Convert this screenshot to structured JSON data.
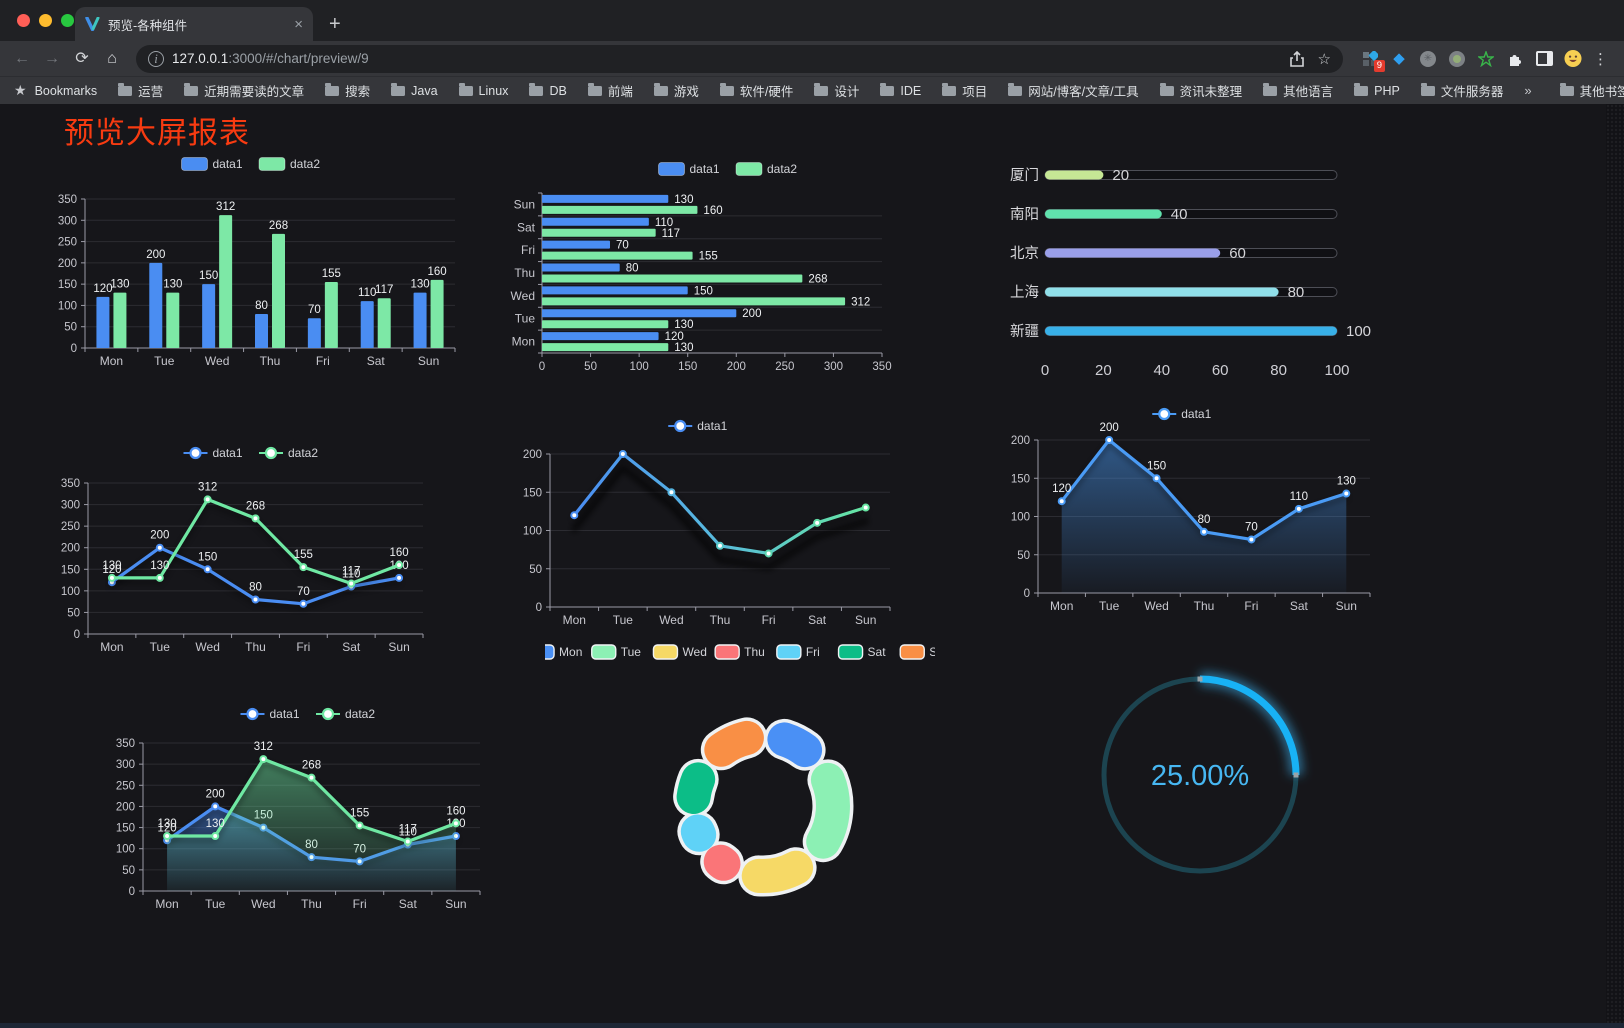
{
  "browser": {
    "tab": {
      "title": "预览-各种组件",
      "close": "×"
    },
    "new_tab": "+",
    "nav": {
      "back": "←",
      "forward": "→",
      "reload": "⟳",
      "home": "⌂"
    },
    "url": {
      "host": "127.0.0.1",
      "rest": ":3000/#/chart/preview/9"
    },
    "extension_badge": "9",
    "menu": "⋮",
    "bookmarks_bar": {
      "star": "★",
      "label": "Bookmarks",
      "folders": [
        "运营",
        "近期需要读的文章",
        "搜索",
        "Java",
        "Linux",
        "DB",
        "前端",
        "游戏",
        "软件/硬件",
        "设计",
        "IDE",
        "项目",
        "网站/博客/文章/工具",
        "资讯未整理",
        "其他语言",
        "PHP",
        "文件服务器"
      ],
      "overflow": "»",
      "other": "其他书签"
    }
  },
  "page": {
    "title": "预览大屏报表",
    "title_color": "#f83b11"
  },
  "chart_data": [
    {
      "id": "bar-vertical",
      "type": "bar",
      "categories": [
        "Mon",
        "Tue",
        "Wed",
        "Thu",
        "Fri",
        "Sat",
        "Sun"
      ],
      "series": [
        {
          "name": "data1",
          "color": "#4a8df2",
          "values": [
            120,
            200,
            150,
            80,
            70,
            110,
            130
          ]
        },
        {
          "name": "data2",
          "color": "#7de8a6",
          "values": [
            130,
            130,
            312,
            268,
            155,
            117,
            160
          ]
        }
      ],
      "ylim": [
        0,
        350
      ],
      "ystep": 50,
      "grid": true,
      "legend_position": "top",
      "value_labels": true
    },
    {
      "id": "bar-horizontal",
      "type": "bar",
      "orientation": "horizontal",
      "categories": [
        "Mon",
        "Tue",
        "Wed",
        "Thu",
        "Fri",
        "Sat",
        "Sun"
      ],
      "series": [
        {
          "name": "data1",
          "color": "#4a8df2",
          "values": [
            120,
            200,
            150,
            80,
            70,
            110,
            130
          ]
        },
        {
          "name": "data2",
          "color": "#7de8a6",
          "values": [
            130,
            130,
            312,
            268,
            155,
            117,
            160
          ]
        }
      ],
      "xlim": [
        0,
        350
      ],
      "xstep": 50,
      "grid": true,
      "legend_position": "top",
      "value_labels": true
    },
    {
      "id": "progress-bars",
      "type": "bar",
      "subtype": "progress",
      "xlim": [
        0,
        100
      ],
      "xticks": [
        0,
        20,
        40,
        60,
        80,
        100
      ],
      "items": [
        {
          "label": "厦门",
          "value": 20,
          "color": "#c6e795"
        },
        {
          "label": "南阳",
          "value": 40,
          "color": "#60e2ad"
        },
        {
          "label": "北京",
          "value": 60,
          "color": "#9a9fe9"
        },
        {
          "label": "上海",
          "value": 80,
          "color": "#90dfe9"
        },
        {
          "label": "新疆",
          "value": 100,
          "color": "#38b0e8"
        }
      ]
    },
    {
      "id": "line-two",
      "type": "line",
      "categories": [
        "Mon",
        "Tue",
        "Wed",
        "Thu",
        "Fri",
        "Sat",
        "Sun"
      ],
      "series": [
        {
          "name": "data1",
          "color": "#4a8df2",
          "values": [
            120,
            200,
            150,
            80,
            70,
            110,
            130
          ]
        },
        {
          "name": "data2",
          "color": "#6fe8a3",
          "values": [
            130,
            130,
            312,
            268,
            155,
            117,
            160
          ]
        }
      ],
      "ylim": [
        0,
        350
      ],
      "ystep": 50,
      "grid": true,
      "legend_position": "top",
      "value_labels": true
    },
    {
      "id": "line-gradient",
      "type": "line",
      "categories": [
        "Mon",
        "Tue",
        "Wed",
        "Thu",
        "Fri",
        "Sat",
        "Sun"
      ],
      "series": [
        {
          "name": "data1",
          "color": "#4a8df2",
          "gradient": [
            "#4a8df2",
            "#66e6a2"
          ],
          "values": [
            120,
            200,
            150,
            80,
            70,
            110,
            130
          ]
        }
      ],
      "ylim": [
        0,
        200
      ],
      "ystep": 50,
      "grid": true,
      "legend_position": "top",
      "value_labels": false,
      "shadow": true
    },
    {
      "id": "area-single",
      "type": "area",
      "categories": [
        "Mon",
        "Tue",
        "Wed",
        "Thu",
        "Fri",
        "Sat",
        "Sun"
      ],
      "series": [
        {
          "name": "data1",
          "color": "#4a9bf5",
          "values": [
            120,
            200,
            150,
            80,
            70,
            110,
            130
          ]
        }
      ],
      "ylim": [
        0,
        200
      ],
      "ystep": 50,
      "grid": true,
      "legend_position": "top",
      "value_labels": true
    },
    {
      "id": "line-area-two",
      "type": "area",
      "categories": [
        "Mon",
        "Tue",
        "Wed",
        "Thu",
        "Fri",
        "Sat",
        "Sun"
      ],
      "series": [
        {
          "name": "data1",
          "color": "#4a8df2",
          "values": [
            120,
            200,
            150,
            80,
            70,
            110,
            130
          ]
        },
        {
          "name": "data2",
          "color": "#6fe8a3",
          "values": [
            130,
            130,
            312,
            268,
            155,
            117,
            160
          ]
        }
      ],
      "ylim": [
        0,
        350
      ],
      "ystep": 50,
      "grid": true,
      "legend_position": "top",
      "value_labels": true
    },
    {
      "id": "donut",
      "type": "pie",
      "donut": true,
      "legend_position": "top",
      "categories": [
        "Mon",
        "Tue",
        "Wed",
        "Thu",
        "Fri",
        "Sat",
        "Sun"
      ],
      "values": [
        120,
        200,
        150,
        80,
        70,
        110,
        130
      ],
      "colors": [
        "#4a90f5",
        "#8cf0b4",
        "#f6d966",
        "#fa7578",
        "#5fd2f7",
        "#0cbd87",
        "#f98f45"
      ]
    },
    {
      "id": "gauge",
      "type": "gauge",
      "value": 25,
      "max": 100,
      "display": "25.00%",
      "color": "#18b2f5",
      "track_color": "#1c4450"
    }
  ]
}
